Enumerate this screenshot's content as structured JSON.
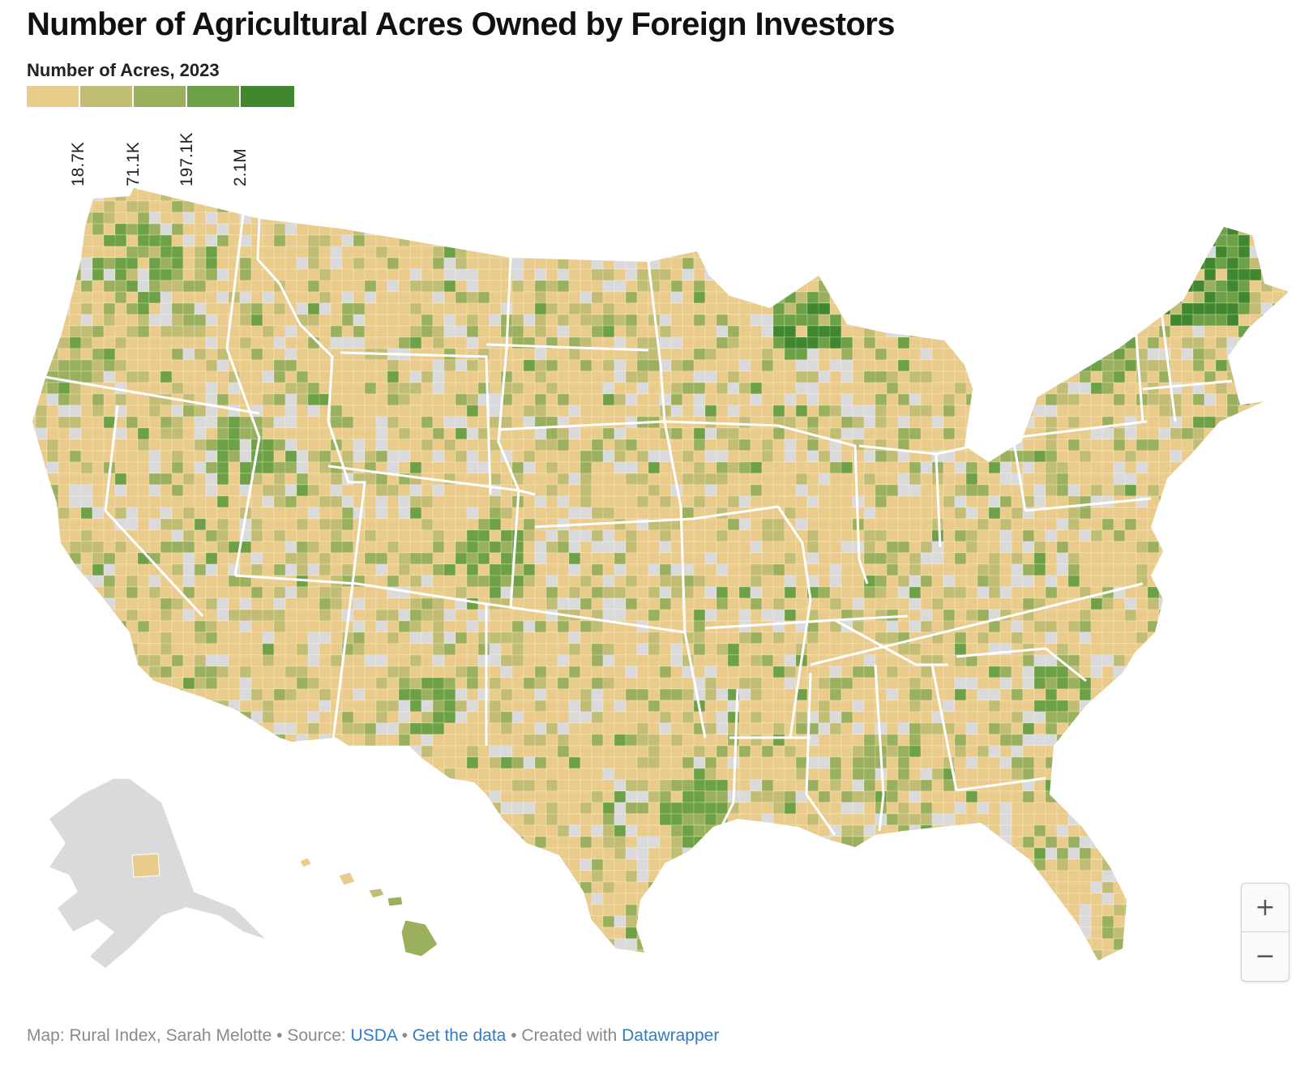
{
  "title": "Number of Agricultural Acres Owned by Foreign Investors",
  "legend": {
    "title": "Number of Acres, 2023",
    "colors": [
      "#e9cb8c",
      "#c2bd75",
      "#9bb05f",
      "#6ea047",
      "#41872f"
    ],
    "breaks": [
      "18.7K",
      "71.1K",
      "197.1K",
      "2.1M"
    ],
    "no_data_color": "#dadada"
  },
  "map": {
    "region": "United States counties",
    "highlighted_areas": [
      {
        "area": "Northern Maine",
        "class": 4
      },
      {
        "area": "Western Upper Peninsula, Michigan",
        "class": 4
      },
      {
        "area": "Northeastern Utah",
        "class": 3
      },
      {
        "area": "Adirondacks, New York",
        "class": 3
      },
      {
        "area": "Southeastern Colorado",
        "class": 3
      },
      {
        "area": "Northeastern New Mexico",
        "class": 4
      },
      {
        "area": "East Texas / Louisiana border",
        "class": 4
      },
      {
        "area": "Western Washington",
        "class": 3
      },
      {
        "area": "Northwestern California",
        "class": 3
      }
    ]
  },
  "zoom": {
    "in_label": "+",
    "out_label": "−"
  },
  "footer": {
    "prefix": "Map: Rural Index, Sarah Melotte • Source: ",
    "source_link": "USDA",
    "separator": " • ",
    "data_link": "Get the data",
    "credit_prefix": " • Created with ",
    "credit_link": "Datawrapper"
  }
}
